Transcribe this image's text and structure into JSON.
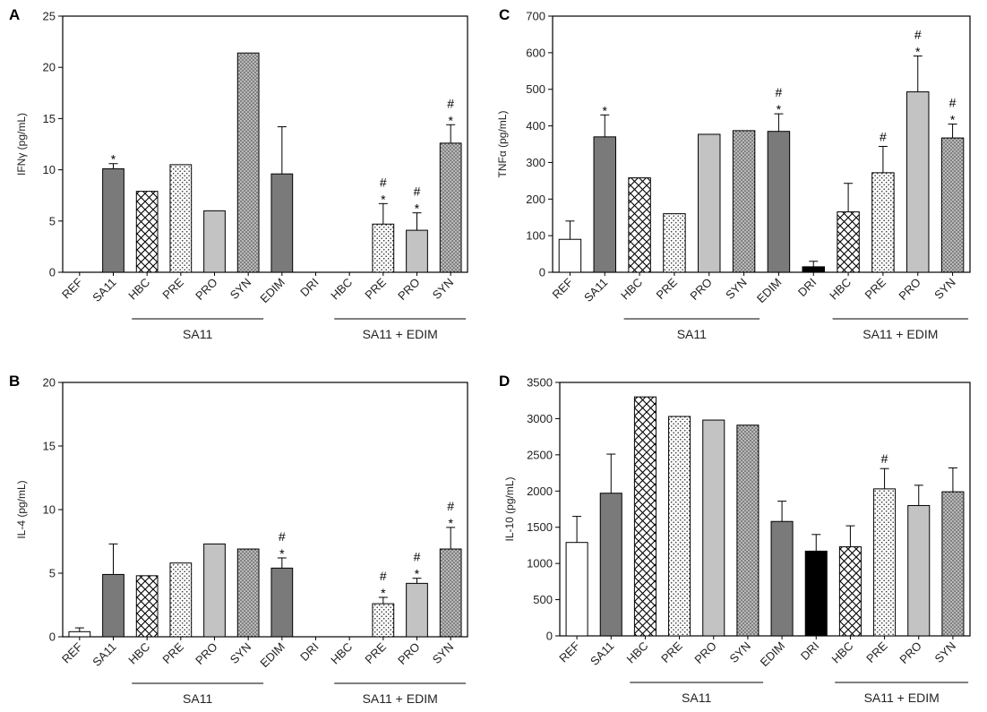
{
  "chart_data": [
    {
      "panel": "A",
      "type": "bar",
      "ylabel": "IFNγ (pg/mL)",
      "ylim": [
        0,
        25
      ],
      "yticks": [
        0,
        5,
        10,
        15,
        20,
        25
      ],
      "categories": [
        "REF",
        "SA11",
        "HBC",
        "PRE",
        "PRO",
        "SYN",
        "EDIM",
        "DRI",
        "HBC",
        "PRE",
        "PRO",
        "SYN"
      ],
      "values": [
        0,
        10.1,
        7.9,
        10.5,
        6.0,
        21.4,
        9.6,
        0,
        0,
        4.7,
        4.1,
        12.6
      ],
      "errors": [
        0,
        0.5,
        0,
        0,
        0,
        0,
        4.6,
        0,
        0,
        2.0,
        1.7,
        1.8
      ],
      "patterns": [
        "white",
        "darkgray",
        "cross",
        "dots",
        "lightgray",
        "darkdots",
        "darkgray",
        "black",
        "cross",
        "dots",
        "lightgray",
        "darkdots"
      ],
      "annotations": [
        "",
        "*",
        "",
        "",
        "",
        "",
        "",
        "",
        "",
        "#\n*",
        "#\n*",
        "#\n*"
      ],
      "groups": [
        {
          "label": "SA11",
          "from": 2,
          "to": 5
        },
        {
          "label": "SA11 + EDIM",
          "from": 8,
          "to": 11
        }
      ]
    },
    {
      "panel": "B",
      "type": "bar",
      "ylabel": "IL-4 (pg/mL)",
      "ylim": [
        0,
        20
      ],
      "yticks": [
        0,
        5,
        10,
        15,
        20
      ],
      "categories": [
        "REF",
        "SA11",
        "HBC",
        "PRE",
        "PRO",
        "SYN",
        "EDIM",
        "DRI",
        "HBC",
        "PRE",
        "PRO",
        "SYN"
      ],
      "values": [
        0.4,
        4.9,
        4.8,
        5.8,
        7.3,
        6.9,
        5.4,
        0,
        0,
        2.6,
        4.2,
        6.9
      ],
      "errors": [
        0.3,
        2.4,
        0,
        0,
        0,
        0,
        0.8,
        0,
        0,
        0.5,
        0.4,
        1.7
      ],
      "patterns": [
        "white",
        "darkgray",
        "cross",
        "dots",
        "lightgray",
        "darkdots",
        "darkgray",
        "black",
        "cross",
        "dots",
        "lightgray",
        "darkdots"
      ],
      "annotations": [
        "",
        "",
        "",
        "",
        "",
        "",
        "#\n*",
        "",
        "",
        "#\n*",
        "#\n*",
        "#\n*"
      ],
      "groups": [
        {
          "label": "SA11",
          "from": 2,
          "to": 5
        },
        {
          "label": "SA11 + EDIM",
          "from": 8,
          "to": 11
        }
      ]
    },
    {
      "panel": "C",
      "type": "bar",
      "ylabel": "TNFα (pg/mL)",
      "ylim": [
        0,
        700
      ],
      "yticks": [
        0,
        100,
        200,
        300,
        400,
        500,
        600,
        700
      ],
      "categories": [
        "REF",
        "SA11",
        "HBC",
        "PRE",
        "PRO",
        "SYN",
        "EDIM",
        "DRI",
        "HBC",
        "PRE",
        "PRO",
        "SYN"
      ],
      "values": [
        90,
        370,
        258,
        160,
        377,
        387,
        385,
        15,
        165,
        272,
        493,
        367
      ],
      "errors": [
        50,
        60,
        0,
        0,
        0,
        0,
        48,
        15,
        78,
        72,
        98,
        38
      ],
      "patterns": [
        "white",
        "darkgray",
        "cross",
        "dots",
        "lightgray",
        "darkdots",
        "darkgray",
        "black",
        "cross",
        "dots",
        "lightgray",
        "darkdots"
      ],
      "annotations": [
        "",
        "*",
        "",
        "",
        "",
        "",
        "#\n*",
        "",
        "",
        "#",
        "#\n*",
        "#\n*"
      ],
      "groups": [
        {
          "label": "SA11",
          "from": 2,
          "to": 5
        },
        {
          "label": "SA11 + EDIM",
          "from": 8,
          "to": 11
        }
      ]
    },
    {
      "panel": "D",
      "type": "bar",
      "ylabel": "IL-10 (pg/mL)",
      "ylim": [
        0,
        3500
      ],
      "yticks": [
        0,
        500,
        1000,
        1500,
        2000,
        2500,
        3000,
        3500
      ],
      "categories": [
        "REF",
        "SA11",
        "HBC",
        "PRE",
        "PRO",
        "SYN",
        "EDIM",
        "DRI",
        "HBC",
        "PRE",
        "PRO",
        "SYN"
      ],
      "values": [
        1290,
        1970,
        3300,
        3030,
        2980,
        2910,
        1580,
        1170,
        1230,
        2030,
        1800,
        1990
      ],
      "errors": [
        360,
        540,
        0,
        0,
        0,
        0,
        280,
        230,
        290,
        280,
        280,
        330
      ],
      "patterns": [
        "white",
        "darkgray",
        "cross",
        "dots",
        "lightgray",
        "darkdots",
        "darkgray",
        "black",
        "cross",
        "dots",
        "lightgray",
        "darkdots"
      ],
      "annotations": [
        "",
        "",
        "",
        "",
        "",
        "",
        "",
        "",
        "",
        "#",
        "",
        ""
      ],
      "groups": [
        {
          "label": "SA11",
          "from": 2,
          "to": 5
        },
        {
          "label": "SA11 + EDIM",
          "from": 8,
          "to": 11
        }
      ]
    }
  ],
  "colors": {
    "darkgray": "#7a7a7a",
    "lightgray": "#c3c3c3",
    "black": "#000000",
    "white": "#ffffff",
    "axis": "#000000"
  }
}
